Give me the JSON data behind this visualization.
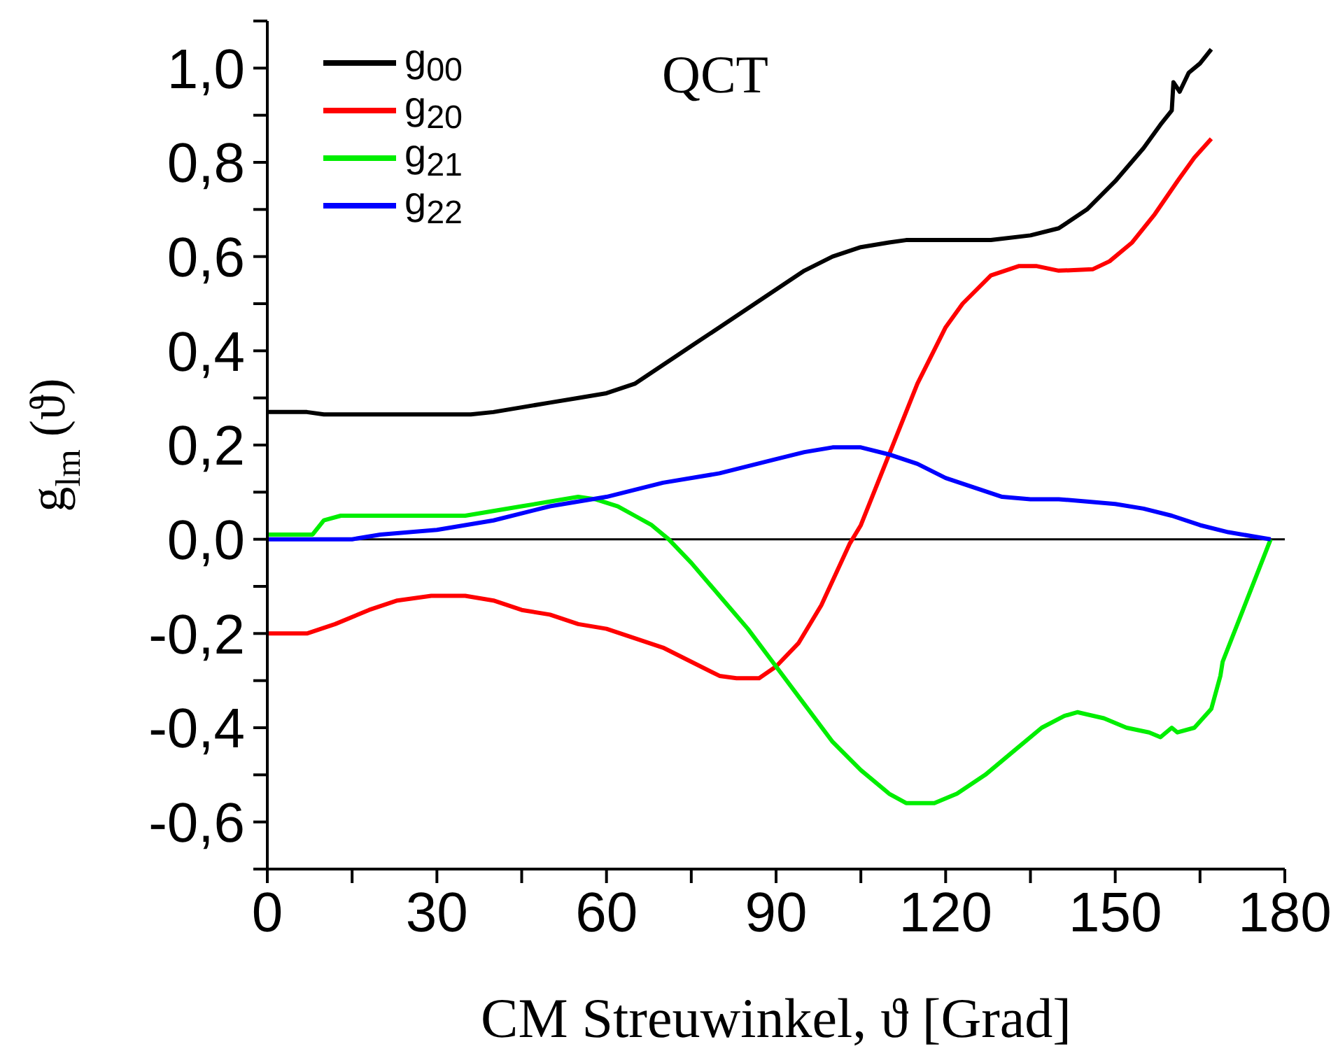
{
  "chart_data": {
    "type": "line",
    "xlabel": "CM Streuwinkel, ϑ [Grad]",
    "ylabel": "g$_{lm}$(ϑ)",
    "annotations": [
      "QCT"
    ],
    "xlim": [
      0,
      180
    ],
    "xticks": [
      0,
      {
        "value": 15,
        "label": null
      },
      30,
      {
        "value": 45,
        "label": null
      },
      60,
      {
        "value": 75,
        "label": null
      },
      90,
      {
        "value": 105,
        "label": null
      },
      120,
      {
        "value": 135,
        "label": null
      },
      150,
      {
        "value": 165,
        "label": null
      },
      180
    ],
    "ylim": [
      -0.7,
      1.1
    ],
    "yticks": [
      {
        "value": -0.7,
        "label": null
      },
      {
        "value": -0.6,
        "label": "-0,6"
      },
      {
        "value": -0.5,
        "label": null
      },
      {
        "value": -0.4,
        "label": "-0,4"
      },
      {
        "value": -0.3,
        "label": null
      },
      {
        "value": -0.2,
        "label": "-0,2"
      },
      {
        "value": -0.1,
        "label": null
      },
      {
        "value": 0,
        "label": "0,0"
      },
      {
        "value": 0.1,
        "label": null
      },
      {
        "value": 0.2,
        "label": "0,2"
      },
      {
        "value": 0.3,
        "label": null
      },
      {
        "value": 0.4,
        "label": "0,4"
      },
      {
        "value": 0.5,
        "label": null
      },
      {
        "value": 0.6,
        "label": "0,6"
      },
      {
        "value": 0.7,
        "label": null
      },
      {
        "value": 0.8,
        "label": "0,8"
      },
      {
        "value": 0.9,
        "label": null
      },
      {
        "value": 1.0,
        "label": "1,0"
      },
      {
        "value": 1.1,
        "label": null
      }
    ],
    "ref_lines": [
      {
        "axis": "y",
        "value": 0,
        "color": "#000000"
      }
    ],
    "legend": "top left",
    "marker": "none",
    "line_style": "solid",
    "series": [
      {
        "name": "g$_{00}$",
        "color": "#000000",
        "x": [
          0,
          7,
          10,
          20,
          36,
          40,
          45,
          50,
          55,
          60,
          65,
          70,
          75,
          80,
          85,
          90,
          95,
          100,
          105,
          110,
          113,
          120,
          128,
          135,
          140,
          145,
          150,
          155,
          158,
          160,
          160.3,
          161.4,
          163,
          165,
          167
        ],
        "values": [
          0.27,
          0.27,
          0.265,
          0.265,
          0.265,
          0.27,
          0.28,
          0.29,
          0.3,
          0.31,
          0.33,
          0.37,
          0.41,
          0.45,
          0.49,
          0.53,
          0.57,
          0.6,
          0.62,
          0.63,
          0.635,
          0.635,
          0.635,
          0.645,
          0.66,
          0.7,
          0.76,
          0.83,
          0.88,
          0.91,
          0.97,
          0.95,
          0.99,
          1.01,
          1.04
        ]
      },
      {
        "name": "g$_{20}$",
        "color": "#ff0000",
        "x": [
          0,
          7,
          12,
          18,
          23,
          29,
          35,
          40,
          45,
          50,
          55,
          60,
          65,
          70,
          75,
          80,
          83,
          87,
          90,
          94,
          98,
          103,
          105,
          110,
          115,
          120,
          123,
          128,
          133,
          136,
          140,
          146,
          149,
          153,
          157,
          161,
          164,
          167
        ],
        "values": [
          -0.2,
          -0.2,
          -0.18,
          -0.15,
          -0.13,
          -0.12,
          -0.12,
          -0.13,
          -0.15,
          -0.16,
          -0.18,
          -0.19,
          -0.21,
          -0.23,
          -0.26,
          -0.29,
          -0.295,
          -0.295,
          -0.27,
          -0.22,
          -0.14,
          -0.01,
          0.03,
          0.18,
          0.33,
          0.45,
          0.5,
          0.56,
          0.58,
          0.58,
          0.57,
          0.573,
          0.59,
          0.63,
          0.69,
          0.76,
          0.81,
          0.85
        ]
      },
      {
        "name": "g$_{21}$",
        "color": "#00ee00",
        "x": [
          0,
          8,
          10,
          13,
          20,
          35,
          40,
          45,
          50,
          55,
          58,
          62,
          65,
          68,
          71,
          75,
          80,
          85,
          90,
          95,
          100,
          105,
          110,
          113,
          118,
          122,
          127,
          132,
          137,
          141,
          143.3,
          148,
          152,
          156,
          158,
          160,
          161,
          164,
          167,
          168.6,
          169,
          177.5
        ],
        "values": [
          0.01,
          0.01,
          0.04,
          0.05,
          0.05,
          0.05,
          0.06,
          0.07,
          0.08,
          0.09,
          0.085,
          0.07,
          0.05,
          0.03,
          0,
          -0.05,
          -0.12,
          -0.19,
          -0.27,
          -0.35,
          -0.43,
          -0.49,
          -0.54,
          -0.56,
          -0.56,
          -0.54,
          -0.5,
          -0.45,
          -0.4,
          -0.375,
          -0.367,
          -0.38,
          -0.4,
          -0.41,
          -0.42,
          -0.4,
          -0.41,
          -0.4,
          -0.36,
          -0.29,
          -0.26,
          0
        ]
      },
      {
        "name": "g$_{22}$",
        "color": "#0000ff",
        "x": [
          0,
          10,
          15,
          20,
          30,
          40,
          50,
          60,
          70,
          80,
          90,
          95,
          100,
          105,
          110,
          115,
          120,
          125,
          130,
          135,
          140,
          145,
          150,
          155,
          160,
          165,
          170,
          177.5
        ],
        "values": [
          0,
          0,
          0,
          0.01,
          0.02,
          0.04,
          0.07,
          0.09,
          0.12,
          0.14,
          0.17,
          0.185,
          0.195,
          0.195,
          0.18,
          0.16,
          0.13,
          0.11,
          0.09,
          0.085,
          0.085,
          0.08,
          0.075,
          0.065,
          0.05,
          0.03,
          0.015,
          0
        ]
      }
    ]
  }
}
